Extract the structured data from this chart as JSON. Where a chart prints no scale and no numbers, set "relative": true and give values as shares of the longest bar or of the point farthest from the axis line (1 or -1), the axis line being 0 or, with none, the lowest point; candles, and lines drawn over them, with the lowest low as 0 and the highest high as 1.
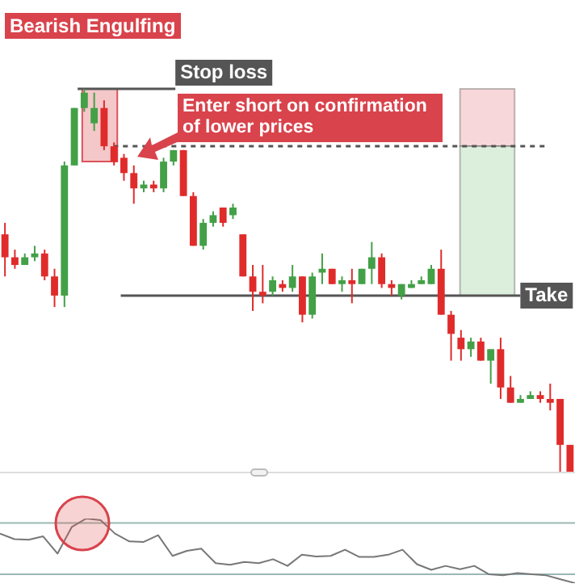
{
  "chart_data": [
    {
      "type": "candlestick",
      "title": "Bearish Engulfing",
      "relative": true,
      "categories": [
        null,
        null,
        null,
        null,
        null,
        null,
        null,
        null,
        null,
        null,
        null,
        null,
        null,
        null,
        null,
        null,
        null,
        null,
        null,
        null,
        null,
        null,
        null,
        null,
        null,
        null,
        null,
        null,
        null,
        null,
        null,
        null,
        null,
        null,
        null,
        null,
        null,
        null,
        null,
        null,
        null,
        null,
        null,
        null,
        null,
        null,
        null,
        null,
        null,
        null,
        null,
        null,
        null,
        null,
        null,
        null,
        null,
        null
      ],
      "ohlc": [
        [
          0.62,
          0.65,
          0.51,
          0.56
        ],
        [
          0.56,
          0.58,
          0.53,
          0.54
        ],
        [
          0.54,
          0.57,
          0.54,
          0.56
        ],
        [
          0.56,
          0.59,
          0.55,
          0.57
        ],
        [
          0.57,
          0.58,
          0.5,
          0.51
        ],
        [
          0.51,
          0.53,
          0.43,
          0.46
        ],
        [
          0.46,
          0.81,
          0.43,
          0.8
        ],
        [
          0.8,
          0.95,
          0.8,
          0.95
        ],
        [
          0.95,
          1.0,
          0.94,
          0.99
        ],
        [
          0.91,
          0.99,
          0.89,
          0.95
        ],
        [
          0.95,
          0.97,
          0.84,
          0.85
        ],
        [
          0.85,
          0.86,
          0.8,
          0.81
        ],
        [
          0.82,
          0.83,
          0.76,
          0.78
        ],
        [
          0.78,
          0.8,
          0.7,
          0.74
        ],
        [
          0.74,
          0.76,
          0.73,
          0.75
        ],
        [
          0.75,
          0.76,
          0.73,
          0.74
        ],
        [
          0.74,
          0.82,
          0.73,
          0.81
        ],
        [
          0.81,
          0.84,
          0.8,
          0.84
        ],
        [
          0.84,
          0.84,
          0.72,
          0.72
        ],
        [
          0.72,
          0.73,
          0.59,
          0.59
        ],
        [
          0.59,
          0.66,
          0.58,
          0.65
        ],
        [
          0.65,
          0.68,
          0.64,
          0.67
        ],
        [
          0.69,
          0.69,
          0.64,
          0.65
        ],
        [
          0.67,
          0.7,
          0.66,
          0.69
        ],
        [
          0.62,
          0.62,
          0.51,
          0.51
        ],
        [
          0.51,
          0.54,
          0.42,
          0.47
        ],
        [
          0.47,
          0.54,
          0.44,
          0.46
        ],
        [
          0.47,
          0.51,
          0.46,
          0.5
        ],
        [
          0.49,
          0.5,
          0.47,
          0.48
        ],
        [
          0.48,
          0.54,
          0.47,
          0.51
        ],
        [
          0.51,
          0.51,
          0.39,
          0.41
        ],
        [
          0.41,
          0.52,
          0.4,
          0.51
        ],
        [
          0.52,
          0.57,
          0.49,
          0.53
        ],
        [
          0.53,
          0.53,
          0.49,
          0.49
        ],
        [
          0.49,
          0.51,
          0.47,
          0.5
        ],
        [
          0.5,
          0.53,
          0.44,
          0.49
        ],
        [
          0.49,
          0.53,
          0.49,
          0.53
        ],
        [
          0.53,
          0.6,
          0.49,
          0.56
        ],
        [
          0.56,
          0.57,
          0.48,
          0.49
        ],
        [
          0.49,
          0.5,
          0.46,
          0.48
        ],
        [
          0.46,
          0.49,
          0.45,
          0.49
        ],
        [
          0.48,
          0.5,
          0.48,
          0.49
        ],
        [
          0.49,
          0.51,
          0.49,
          0.5
        ],
        [
          0.49,
          0.54,
          0.49,
          0.53
        ],
        [
          0.53,
          0.58,
          0.41,
          0.41
        ],
        [
          0.41,
          0.42,
          0.29,
          0.36
        ],
        [
          0.35,
          0.37,
          0.29,
          0.32
        ],
        [
          0.32,
          0.35,
          0.3,
          0.34
        ],
        [
          0.34,
          0.35,
          0.29,
          0.29
        ],
        [
          0.29,
          0.32,
          0.23,
          0.32
        ],
        [
          0.32,
          0.35,
          0.19,
          0.22
        ],
        [
          0.22,
          0.25,
          0.18,
          0.18
        ],
        [
          0.18,
          0.2,
          0.18,
          0.19
        ],
        [
          0.19,
          0.21,
          0.19,
          0.2
        ],
        [
          0.2,
          0.21,
          0.18,
          0.19
        ],
        [
          0.19,
          0.23,
          0.16,
          0.18
        ],
        [
          0.19,
          0.19,
          0.0,
          0.07
        ],
        [
          0.07,
          0.07,
          0.0,
          0.0
        ]
      ],
      "ref_lines": [
        {
          "axis": "y",
          "value": 1.0,
          "label": "Stop loss",
          "color": "#555555"
        },
        {
          "axis": "y",
          "value": 0.85,
          "line_style": "dashed",
          "color": "#555555"
        },
        {
          "axis": "y",
          "value": 0.46,
          "label": "Take",
          "color": "#555555"
        }
      ],
      "bands": [
        {
          "axis": "y",
          "from": 0.85,
          "to": 1.0,
          "color": "#f8d7da"
        },
        {
          "axis": "y",
          "from": 0.46,
          "to": 0.85,
          "color": "#dcefdc"
        },
        {
          "axis": "y",
          "from": 0.81,
          "to": 1.0,
          "color": "#f4c7c9"
        }
      ],
      "annotations": [
        "Enter short on confirmation of lower prices"
      ]
    },
    {
      "type": "line",
      "relative": true,
      "categories": [
        null,
        null,
        null,
        null,
        null,
        null,
        null,
        null,
        null,
        null,
        null,
        null,
        null,
        null,
        null,
        null,
        null,
        null,
        null,
        null,
        null,
        null,
        null,
        null,
        null,
        null,
        null,
        null,
        null,
        null,
        null,
        null,
        null,
        null,
        null,
        null,
        null,
        null,
        null,
        null,
        null
      ],
      "color": "#777777",
      "values": [
        0.73,
        0.63,
        0.62,
        0.68,
        0.37,
        0.85,
        1.0,
        0.97,
        0.73,
        0.59,
        0.58,
        0.7,
        0.33,
        0.42,
        0.46,
        0.2,
        0.17,
        0.22,
        0.2,
        0.27,
        0.15,
        0.35,
        0.32,
        0.33,
        0.44,
        0.31,
        0.31,
        0.35,
        0.44,
        0.18,
        0.08,
        0.15,
        0.09,
        0.15,
        0.0,
        -0.02,
        0.02,
        0.0,
        -0.02,
        -0.09,
        -0.16
      ],
      "ref_lines": [
        {
          "axis": "y",
          "value": 0.92,
          "color": "#9ab8b4"
        }
      ]
    }
  ]
}
